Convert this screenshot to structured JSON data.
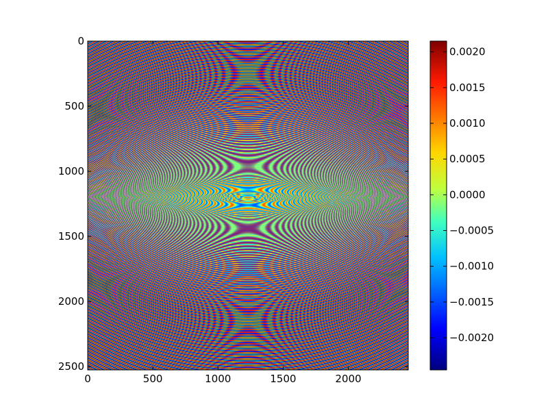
{
  "chart_data": {
    "type": "heatmap",
    "title": "",
    "xlabel": "",
    "ylabel": "",
    "x_range": [
      0,
      2460
    ],
    "y_range": [
      0,
      2525
    ],
    "y_inverted": true,
    "x_ticks": [
      0,
      500,
      1000,
      1500,
      2000
    ],
    "x_tick_labels": [
      "0",
      "500",
      "1000",
      "1500",
      "2000"
    ],
    "y_ticks": [
      0,
      500,
      1000,
      1500,
      2000,
      2500
    ],
    "y_tick_labels": [
      "0",
      "500",
      "1000",
      "1500",
      "2000",
      "2500"
    ],
    "colormap": "jet",
    "colorbar_range": [
      -0.00245,
      0.00215
    ],
    "colorbar_ticks": [
      0.002,
      0.0015,
      0.001,
      0.0005,
      0.0,
      -0.0005,
      -0.001,
      -0.0015,
      -0.002
    ],
    "colorbar_tick_labels": [
      "0.0020",
      "0.0015",
      "0.0010",
      "0.0005",
      "0.0000",
      "−0.0005",
      "−0.0010",
      "−0.0015",
      "−0.0020"
    ],
    "pattern": {
      "description": "Concentric interference fringes, curving upward near top and downward near bottom, nearly flat near y≈1200",
      "center_x": 1230,
      "center_y": 1200,
      "fringe_count": 115,
      "curvature_radius_top": 2300
    },
    "grid": false,
    "legend": "none"
  },
  "colors": {
    "background": "#ffffff",
    "axes_edge": "#000000"
  }
}
